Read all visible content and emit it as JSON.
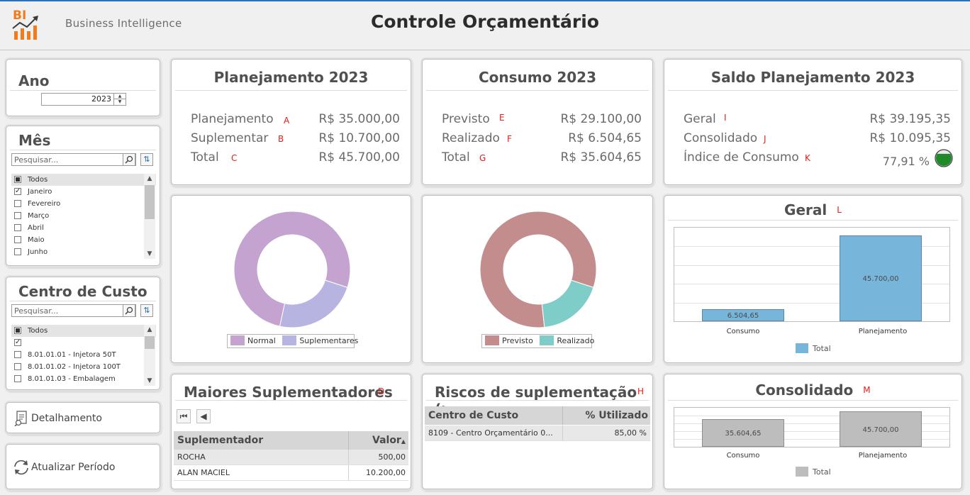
{
  "header": {
    "logo_text": "BI",
    "brand": "Business Intelligence",
    "title": "Controle Orçamentário"
  },
  "ano": {
    "title": "Ano",
    "value": "2023"
  },
  "mes": {
    "title": "Mês",
    "search_placeholder": "Pesquisar...",
    "items": [
      {
        "label": "Todos",
        "state": "mixed"
      },
      {
        "label": "Janeiro",
        "state": "checked"
      },
      {
        "label": "Fevereiro",
        "state": "unchecked"
      },
      {
        "label": "Março",
        "state": "unchecked"
      },
      {
        "label": "Abril",
        "state": "unchecked"
      },
      {
        "label": "Maio",
        "state": "unchecked"
      },
      {
        "label": "Junho",
        "state": "unchecked"
      }
    ]
  },
  "centro": {
    "title": "Centro de Custo",
    "search_placeholder": "Pesquisar...",
    "items": [
      {
        "label": "Todos",
        "state": "mixed"
      },
      {
        "label": "",
        "state": "checked"
      },
      {
        "label": "8.01.01.01 - Injetora 50T",
        "state": "unchecked"
      },
      {
        "label": "8.01.01.02 - Injetora 100T",
        "state": "unchecked"
      },
      {
        "label": "8.01.01.03 - Embalagem",
        "state": "unchecked"
      }
    ]
  },
  "buttons": {
    "detalhamento": "Detalhamento",
    "atualizar": "Atualizar Período"
  },
  "planejamento": {
    "title": "Planejamento 2023",
    "rows": [
      {
        "label": "Planejamento",
        "letter": "A",
        "value": "R$ 35.000,00"
      },
      {
        "label": "Suplementar",
        "letter": "B",
        "value": "R$ 10.700,00"
      },
      {
        "label": "Total",
        "letter": "C",
        "value": "R$ 45.700,00"
      }
    ]
  },
  "consumo": {
    "title": "Consumo 2023",
    "rows": [
      {
        "label": "Previsto",
        "letter": "E",
        "value": "R$ 29.100,00"
      },
      {
        "label": "Realizado",
        "letter": "F",
        "value": "R$ 6.504,65"
      },
      {
        "label": "Total",
        "letter": "G",
        "value": "R$ 35.604,65"
      }
    ]
  },
  "saldo": {
    "title": "Saldo Planejamento 2023",
    "rows": [
      {
        "label": "Geral",
        "letter": "I",
        "value": "R$ 39.195,35"
      },
      {
        "label": "Consolidado",
        "letter": "J",
        "value": "R$ 10.095,35"
      },
      {
        "label": "Índice de Consumo",
        "letter": "K",
        "value": "77,91 %"
      }
    ],
    "indicator_level": 0.7791
  },
  "donut_plan": {
    "legend": [
      "Normal",
      "Suplementares"
    ],
    "values": [
      35000,
      10700
    ],
    "colors": [
      "#c5a3d0",
      "#b8b4e2"
    ]
  },
  "donut_consumo": {
    "legend": [
      "Previsto",
      "Realizado"
    ],
    "values": [
      29100,
      6504.65
    ],
    "colors": [
      "#c38d8d",
      "#7ecdc8"
    ]
  },
  "geral": {
    "title": "Geral",
    "letter": "L",
    "legend": "Total",
    "color": "#78b5db"
  },
  "consolidado": {
    "title": "Consolidado",
    "letter": "M",
    "legend": "Total",
    "color": "#bdbdbd"
  },
  "suplementadores": {
    "title": "Maiores Suplementadores",
    "letter": "D",
    "columns": [
      "Suplementador",
      "Valor"
    ],
    "rows": [
      {
        "name": "ROCHA",
        "value": "500,00"
      },
      {
        "name": "ALAN MACIEL",
        "value": "10.200,00"
      }
    ]
  },
  "riscos": {
    "title": "Riscos de suplementação (>",
    "letter": "H",
    "columns": [
      "Centro de Custo",
      "% Utilizado"
    ],
    "rows": [
      {
        "centro": "8109 - Centro Orçamentário 0...",
        "pct": "85,00 %"
      }
    ]
  },
  "chart_data": [
    {
      "type": "pie",
      "categories": [
        "Normal",
        "Suplementares"
      ],
      "values": [
        35000,
        10700
      ],
      "legend": "bottom"
    },
    {
      "type": "pie",
      "categories": [
        "Previsto",
        "Realizado"
      ],
      "values": [
        29100,
        6504.65
      ],
      "legend": "bottom"
    },
    {
      "type": "bar",
      "title": "Geral",
      "categories": [
        "Consumo",
        "Planejamento"
      ],
      "series": [
        {
          "name": "Total",
          "values": [
            6504.65,
            45700
          ]
        }
      ],
      "data_labels": [
        "6.504,65",
        "45.700,00"
      ],
      "ylim": [
        0,
        50000
      ],
      "grid": true,
      "legend": "bottom"
    },
    {
      "type": "bar",
      "title": "Consolidado",
      "categories": [
        "Consumo",
        "Planejamento"
      ],
      "series": [
        {
          "name": "Total",
          "values": [
            35604.65,
            45700
          ]
        }
      ],
      "data_labels": [
        "35.604,65",
        "45.700,00"
      ],
      "ylim": [
        0,
        50000
      ],
      "grid": true,
      "legend": "bottom"
    }
  ]
}
